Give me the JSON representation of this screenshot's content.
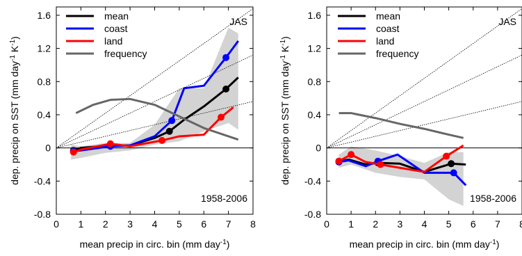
{
  "chart_data": [
    {
      "type": "line",
      "panel_label": "JAS",
      "period_label": "1958-2006",
      "xlabel": "mean precip in circ. bin (mm day",
      "xlabel_sup": "-1",
      "xlabel_tail": ")",
      "ylabel": "dep. precip on SST (mm day",
      "ylabel_sup1": "-1",
      "ylabel_mid": " K",
      "ylabel_sup2": "-1",
      "ylabel_tail": ")",
      "xlim": [
        0,
        8
      ],
      "ylim": [
        -0.8,
        1.7
      ],
      "xticks": [
        0,
        1,
        2,
        3,
        4,
        5,
        6,
        7,
        8
      ],
      "yticks": [
        -0.8,
        -0.4,
        0,
        0.4,
        0.8,
        1.2,
        1.6
      ],
      "ytick_labels": [
        "-0.8",
        "-0.4",
        "0",
        "0.4",
        "0.8",
        "1.2",
        "1.6"
      ],
      "reference_line_slopes": [
        0.07,
        0.14,
        0.21
      ],
      "spread_band": {
        "x": [
          0.6,
          1.0,
          2.0,
          3.0,
          4.0,
          5.0,
          6.0,
          7.0,
          7.4
        ],
        "upper": [
          0.04,
          0.02,
          0.06,
          0.06,
          0.28,
          0.72,
          0.72,
          1.45,
          1.38
        ],
        "lower": [
          -0.14,
          -0.12,
          -0.06,
          -0.03,
          0.04,
          0.08,
          0.2,
          0.3,
          0.22
        ]
      },
      "legend": [
        "mean",
        "coast",
        "land",
        "frequency"
      ],
      "series": [
        {
          "name": "mean",
          "color": "#000000",
          "x": [
            0.7,
            1.0,
            2.2,
            3.0,
            4.0,
            4.6,
            5.2,
            6.0,
            6.9,
            7.4
          ],
          "y": [
            -0.03,
            0.0,
            0.03,
            0.03,
            0.12,
            0.2,
            0.34,
            0.5,
            0.71,
            0.85
          ],
          "marker_x": [
            0.7,
            2.2,
            4.6,
            6.9
          ],
          "marker_y": [
            -0.03,
            0.03,
            0.2,
            0.71
          ]
        },
        {
          "name": "coast",
          "color": "#0000ff",
          "x": [
            0.7,
            1.0,
            2.2,
            3.0,
            4.0,
            4.7,
            5.2,
            6.0,
            6.9,
            7.4
          ],
          "y": [
            -0.04,
            -0.03,
            0.02,
            0.03,
            0.14,
            0.33,
            0.72,
            0.75,
            1.09,
            1.29
          ],
          "marker_x": [
            0.7,
            2.2,
            4.7,
            6.9
          ],
          "marker_y": [
            -0.04,
            0.02,
            0.33,
            1.09
          ]
        },
        {
          "name": "land",
          "color": "#ff0000",
          "x": [
            0.7,
            1.0,
            2.2,
            3.0,
            4.3,
            5.0,
            6.0,
            6.7,
            7.2
          ],
          "y": [
            -0.05,
            -0.02,
            0.05,
            0.02,
            0.09,
            0.14,
            0.16,
            0.37,
            0.49
          ],
          "marker_x": [
            0.7,
            2.2,
            4.3,
            6.7
          ],
          "marker_y": [
            -0.05,
            0.05,
            0.09,
            0.37
          ]
        },
        {
          "name": "frequency",
          "color": "#666666",
          "x": [
            0.8,
            1.5,
            2.2,
            3.0,
            4.0,
            5.0,
            6.0,
            7.0,
            7.4
          ],
          "y": [
            0.42,
            0.52,
            0.58,
            0.59,
            0.52,
            0.38,
            0.24,
            0.14,
            0.1
          ]
        }
      ]
    },
    {
      "type": "line",
      "panel_label": "JAS",
      "period_label": "1958-2006",
      "xlabel": "mean precip in circ. bin (mm day",
      "xlabel_sup": "-1",
      "xlabel_tail": ")",
      "ylabel": "dep. precip on SST (mm day",
      "ylabel_sup1": "-1",
      "ylabel_mid": " K",
      "ylabel_sup2": "-1",
      "ylabel_tail": ")",
      "xlim": [
        0,
        8
      ],
      "ylim": [
        -0.8,
        1.7
      ],
      "xticks": [
        0,
        1,
        2,
        3,
        4,
        5,
        6,
        7,
        8
      ],
      "yticks": [
        -0.8,
        -0.4,
        0,
        0.4,
        0.8,
        1.2,
        1.6
      ],
      "ytick_labels": [
        "-0.8",
        "-0.4",
        "0",
        "0.4",
        "0.8",
        "1.2",
        "1.6"
      ],
      "reference_line_slopes": [
        0.07,
        0.14,
        0.21
      ],
      "spread_band": {
        "x": [
          0.5,
          1.0,
          2.0,
          3.0,
          4.0,
          5.0,
          5.6
        ],
        "upper": [
          -0.08,
          0.02,
          -0.03,
          -0.1,
          -0.18,
          -0.05,
          -0.05
        ],
        "lower": [
          -0.24,
          -0.2,
          -0.3,
          -0.35,
          -0.38,
          -0.62,
          -0.7
        ]
      },
      "legend": [
        "mean",
        "coast",
        "land",
        "frequency"
      ],
      "series": [
        {
          "name": "mean",
          "color": "#000000",
          "x": [
            0.5,
            0.9,
            1.6,
            2.1,
            3.0,
            4.0,
            5.1,
            5.7
          ],
          "y": [
            -0.16,
            -0.14,
            -0.2,
            -0.18,
            -0.19,
            -0.29,
            -0.19,
            -0.2
          ],
          "marker_x": [
            0.5,
            2.1,
            5.1
          ],
          "marker_y": [
            -0.16,
            -0.18,
            -0.19
          ]
        },
        {
          "name": "coast",
          "color": "#0000ff",
          "x": [
            0.5,
            0.9,
            1.6,
            2.1,
            2.9,
            4.0,
            5.0,
            5.2,
            5.7
          ],
          "y": [
            -0.17,
            -0.15,
            -0.22,
            -0.16,
            -0.08,
            -0.3,
            -0.3,
            -0.3,
            -0.45
          ],
          "marker_x": [
            0.5,
            2.1,
            5.2
          ],
          "marker_y": [
            -0.17,
            -0.16,
            -0.3
          ]
        },
        {
          "name": "land",
          "color": "#ff0000",
          "x": [
            0.5,
            1.0,
            1.6,
            2.2,
            4.0,
            4.9,
            5.6
          ],
          "y": [
            -0.16,
            -0.08,
            -0.17,
            -0.2,
            -0.29,
            -0.1,
            0.03
          ],
          "marker_x": [
            0.5,
            1.0,
            2.2,
            4.9
          ],
          "marker_y": [
            -0.16,
            -0.08,
            -0.2,
            -0.1
          ]
        },
        {
          "name": "frequency",
          "color": "#666666",
          "x": [
            0.5,
            1.0,
            2.0,
            3.0,
            4.0,
            5.0,
            5.6
          ],
          "y": [
            0.42,
            0.42,
            0.36,
            0.29,
            0.23,
            0.16,
            0.12
          ]
        }
      ]
    }
  ]
}
